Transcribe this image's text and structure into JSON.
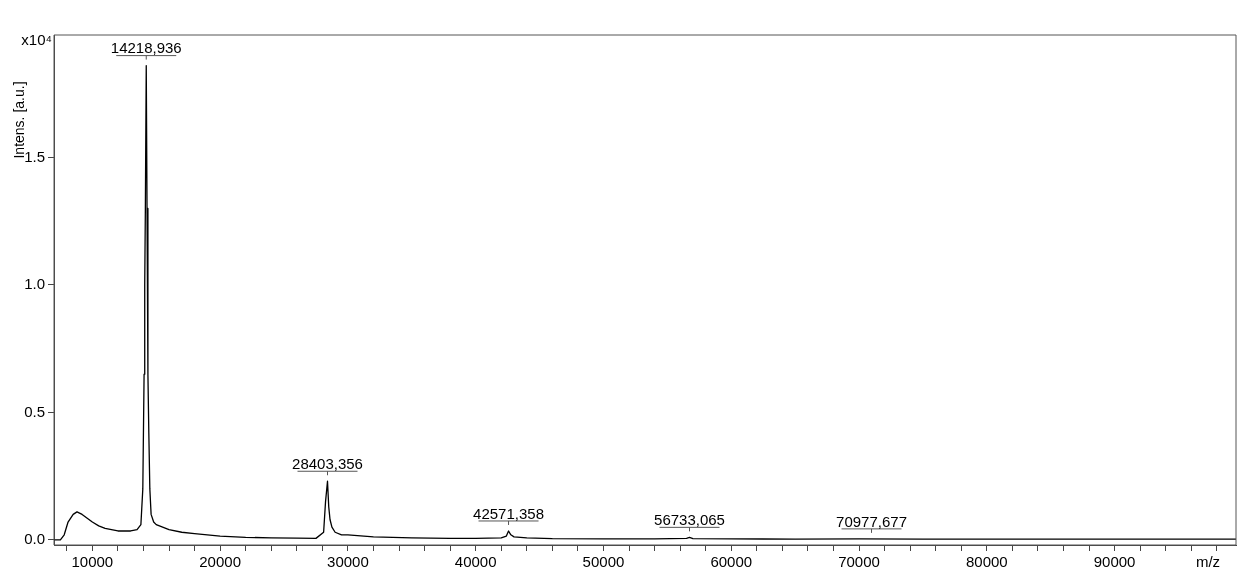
{
  "chart_data": {
    "type": "line",
    "xlabel": "m/z",
    "ylabel": "Intens. [a.u.]",
    "x": [
      7000,
      7500,
      7800,
      8100,
      8500,
      8800,
      9200,
      9600,
      10000,
      10500,
      11000,
      11500,
      12000,
      12500,
      13000,
      13500,
      13800,
      13950,
      14050,
      14100,
      14150,
      14219,
      14280,
      14350,
      14420,
      14500,
      14600,
      14800,
      15000,
      15500,
      16000,
      17000,
      18000,
      19000,
      20000,
      22000,
      24000,
      26000,
      27500,
      28100,
      28250,
      28403,
      28500,
      28600,
      28750,
      29000,
      29500,
      30000,
      32000,
      35000,
      38000,
      40000,
      42000,
      42400,
      42571,
      42750,
      43000,
      44000,
      46000,
      50000,
      54000,
      56500,
      56733,
      57000,
      60000,
      65000,
      70000,
      75000,
      80000,
      85000,
      90000,
      95000,
      99500
    ],
    "series": [
      {
        "color": "#000000",
        "values": [
          0,
          0,
          0.02,
          0.07,
          0.1,
          0.11,
          0.1,
          0.085,
          0.07,
          0.055,
          0.045,
          0.04,
          0.035,
          0.035,
          0.035,
          0.04,
          0.06,
          0.2,
          0.65,
          1.0,
          1.3,
          1.86,
          1.3,
          0.65,
          0.42,
          0.2,
          0.1,
          0.07,
          0.06,
          0.05,
          0.04,
          0.03,
          0.025,
          0.02,
          0.015,
          0.01,
          0.008,
          0.007,
          0.006,
          0.03,
          0.15,
          0.23,
          0.13,
          0.08,
          0.05,
          0.03,
          0.02,
          0.02,
          0.012,
          0.008,
          0.006,
          0.006,
          0.008,
          0.015,
          0.035,
          0.02,
          0.012,
          0.008,
          0.005,
          0.004,
          0.004,
          0.006,
          0.01,
          0.005,
          0.004,
          0.003,
          0.004,
          0.003,
          0.003,
          0.003,
          0.003,
          0.003,
          0.003
        ]
      }
    ],
    "xlim": [
      7000,
      99500
    ],
    "ylim": [
      -0.02,
      1.98
    ],
    "xticks": [
      {
        "value": 8000,
        "label": null
      },
      10000,
      {
        "value": 12000,
        "label": null
      },
      {
        "value": 14000,
        "label": null
      },
      {
        "value": 16000,
        "label": null
      },
      {
        "value": 18000,
        "label": null
      },
      20000,
      {
        "value": 22000,
        "label": null
      },
      {
        "value": 24000,
        "label": null
      },
      {
        "value": 26000,
        "label": null
      },
      {
        "value": 28000,
        "label": null
      },
      30000,
      {
        "value": 32000,
        "label": null
      },
      {
        "value": 34000,
        "label": null
      },
      {
        "value": 36000,
        "label": null
      },
      {
        "value": 38000,
        "label": null
      },
      40000,
      {
        "value": 42000,
        "label": null
      },
      {
        "value": 44000,
        "label": null
      },
      {
        "value": 46000,
        "label": null
      },
      {
        "value": 48000,
        "label": null
      },
      50000,
      {
        "value": 52000,
        "label": null
      },
      {
        "value": 54000,
        "label": null
      },
      {
        "value": 56000,
        "label": null
      },
      {
        "value": 58000,
        "label": null
      },
      60000,
      {
        "value": 62000,
        "label": null
      },
      {
        "value": 64000,
        "label": null
      },
      {
        "value": 66000,
        "label": null
      },
      {
        "value": 68000,
        "label": null
      },
      70000,
      {
        "value": 72000,
        "label": null
      },
      {
        "value": 74000,
        "label": null
      },
      {
        "value": 76000,
        "label": null
      },
      {
        "value": 78000,
        "label": null
      },
      80000,
      {
        "value": 82000,
        "label": null
      },
      {
        "value": 84000,
        "label": null
      },
      {
        "value": 86000,
        "label": null
      },
      {
        "value": 88000,
        "label": null
      },
      90000,
      {
        "value": 92000,
        "label": null
      },
      {
        "value": 94000,
        "label": null
      },
      {
        "value": 96000,
        "label": null
      },
      {
        "value": 98000,
        "label": null
      }
    ],
    "yticks": [
      {
        "value": 0,
        "label": "0.0"
      },
      0.5,
      {
        "value": 1,
        "label": "1.0"
      },
      1.5
    ],
    "grid": false,
    "legend": false,
    "marker": "none",
    "line_style": "solid",
    "annotations": [
      "x10⁴",
      {
        "text": "14218,936",
        "x": 14218.936,
        "y": 1.86
      },
      {
        "text": "28403,356",
        "x": 28403.356,
        "y": 0.23
      },
      {
        "text": "42571,358",
        "x": 42571.358,
        "y": 0.035
      },
      {
        "text": "56733,065",
        "x": 56733.065,
        "y": 0.01
      },
      {
        "text": "70977,677",
        "x": 70977.677,
        "y": 0.004
      }
    ]
  }
}
